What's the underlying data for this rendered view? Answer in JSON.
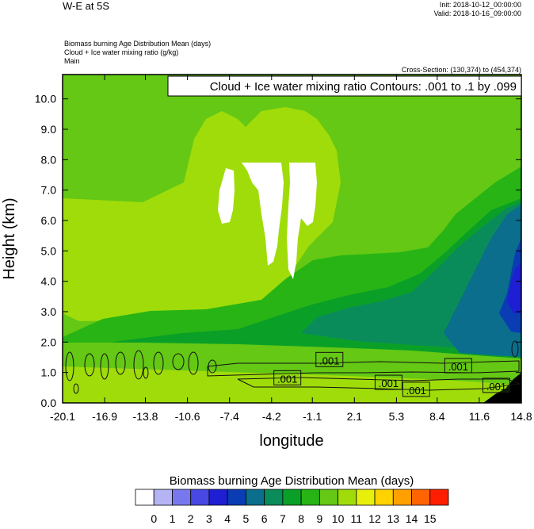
{
  "header": {
    "title": "W-E at 5S",
    "init": "Init: 2018-10-12_00:00:00",
    "valid": "Valid: 2018-10-16_09:00:00",
    "fields": [
      "Biomass burning Age Distribution Mean   (days)",
      "Cloud + Ice water mixing ratio   (g/kg)",
      "Main"
    ],
    "cross_section": "Cross-Section: (130,374) to (454,374)"
  },
  "chart_data": {
    "type": "heatmap",
    "title": "Cloud + Ice water mixing ratio Contours: .001 to .1 by .099",
    "xlabel": "longitude",
    "ylabel": "Height (km)",
    "x_ticks": [
      "-20.1",
      "-16.9",
      "-13.8",
      "-10.6",
      "-7.4",
      "-4.2",
      "-1.1",
      "2.1",
      "5.3",
      "8.4",
      "11.6",
      "14.8"
    ],
    "y_ticks": [
      "0.0",
      "1.0",
      "2.0",
      "3.0",
      "4.0",
      "5.0",
      "6.0",
      "7.0",
      "8.0",
      "9.0",
      "10.0"
    ],
    "xlim": [
      -20.1,
      14.8
    ],
    "ylim": [
      0.0,
      10.8
    ],
    "contour_labels": [
      {
        "text": ".001",
        "x": 0.2,
        "y": 1.4
      },
      {
        "text": ".001",
        "x": -3.0,
        "y": 0.8
      },
      {
        "text": ".001",
        "x": 4.7,
        "y": 0.65
      },
      {
        "text": ".001",
        "x": 6.8,
        "y": 0.42
      },
      {
        "text": ".001",
        "x": 10.0,
        "y": 1.2
      },
      {
        "text": ".001",
        "x": 12.9,
        "y": 0.55
      }
    ],
    "colorbar": {
      "title": "Biomass burning Age Distribution Mean  (days)",
      "labels": [
        "0",
        "1",
        "2",
        "3",
        "4",
        "5",
        "6",
        "7",
        "8",
        "9",
        "10",
        "11",
        "12",
        "13",
        "14",
        "15"
      ],
      "colors": [
        "#ffffff",
        "#b4b4f4",
        "#7878ee",
        "#4848e4",
        "#1e1ed2",
        "#0a3cb4",
        "#0a6e8c",
        "#0a8c5a",
        "#0aa028",
        "#28b414",
        "#64c814",
        "#a0dc0a",
        "#e6f00a",
        "#ffd200",
        "#ffa000",
        "#ff6400",
        "#ff1e00"
      ]
    }
  }
}
